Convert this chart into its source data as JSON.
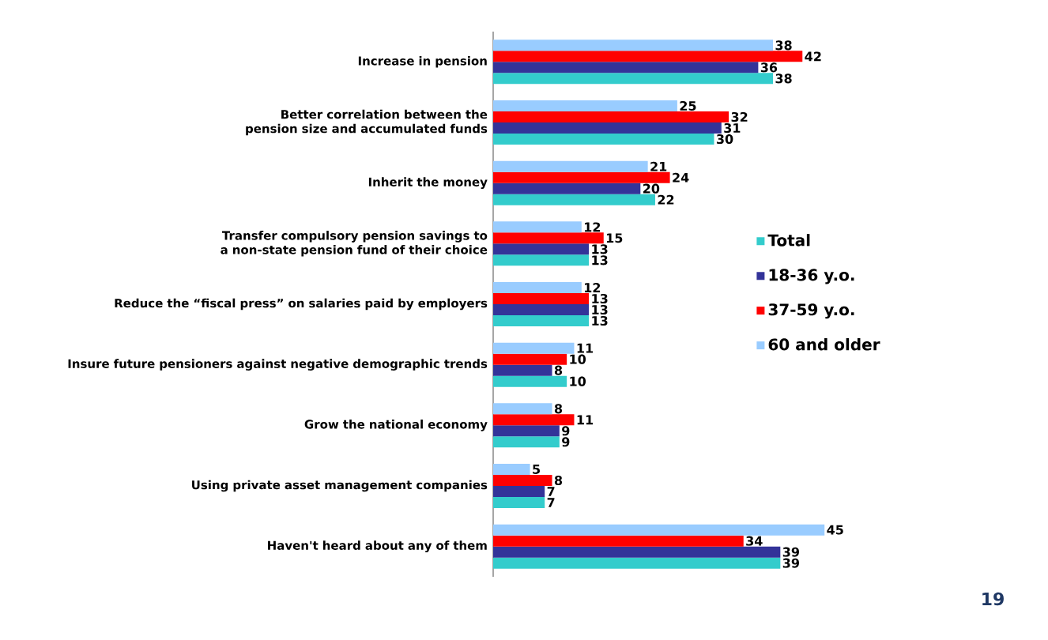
{
  "chart_data": {
    "type": "bar",
    "orientation": "horizontal",
    "data_labels": true,
    "legend": "right",
    "categories": [
      "Increase in pension",
      "Better correlation between the pension size and accumulated funds",
      "Inherit the money",
      "Transfer compulsory pension savings to a non-state pension fund of their choice",
      "Reduce the “fiscal press” on salaries paid by employers",
      "Insure future pensioners against negative demographic trends",
      "Grow the national economy",
      "Using private asset management companies",
      "Haven't heard about any of them"
    ],
    "series": [
      {
        "name": "Total",
        "color": "#33cccc",
        "values": [
          38,
          30,
          22,
          13,
          13,
          10,
          9,
          7,
          39
        ]
      },
      {
        "name": "18-36 y.o.",
        "color": "#333399",
        "values": [
          36,
          31,
          20,
          13,
          13,
          8,
          9,
          7,
          39
        ]
      },
      {
        "name": "37-59 y.o.",
        "color": "#ff0000",
        "values": [
          42,
          32,
          24,
          15,
          13,
          10,
          11,
          8,
          34
        ]
      },
      {
        "name": "60 and older",
        "color": "#99ccff",
        "values": [
          38,
          25,
          21,
          12,
          12,
          11,
          8,
          5,
          45
        ]
      }
    ],
    "annotations": [
      "19"
    ]
  }
}
